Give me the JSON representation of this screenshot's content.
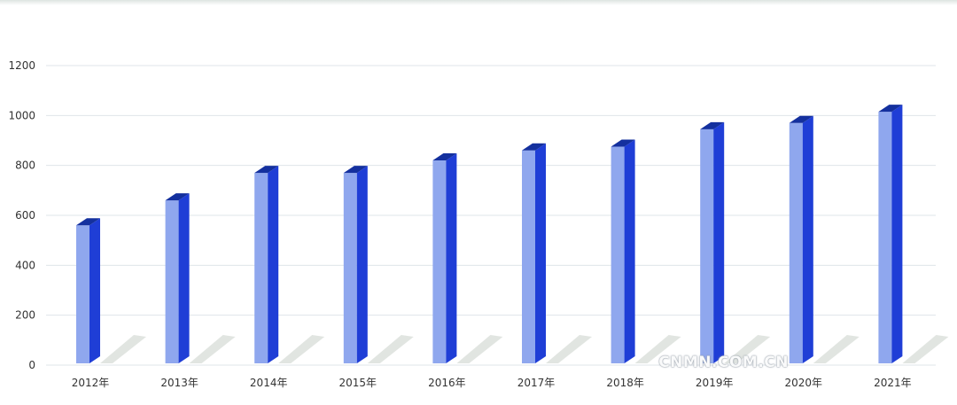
{
  "chart_data": {
    "type": "bar",
    "categories": [
      "2012年",
      "2013年",
      "2014年",
      "2015年",
      "2016年",
      "2017年",
      "2018年",
      "2019年",
      "2020年",
      "2021年"
    ],
    "values": [
      560,
      660,
      770,
      770,
      820,
      860,
      875,
      945,
      970,
      1015
    ],
    "ylim": [
      0,
      1200
    ],
    "yticks": [
      0,
      200,
      400,
      600,
      800,
      1000,
      1200
    ],
    "grid": true,
    "colors": {
      "bar_front": "#8fa7ee",
      "bar_side": "#1f3ed6",
      "bar_top": "#14309e",
      "shadow": "#c9cfc9",
      "grid": "#dfe5ea"
    }
  },
  "watermark": "CNMN.COM.CN"
}
